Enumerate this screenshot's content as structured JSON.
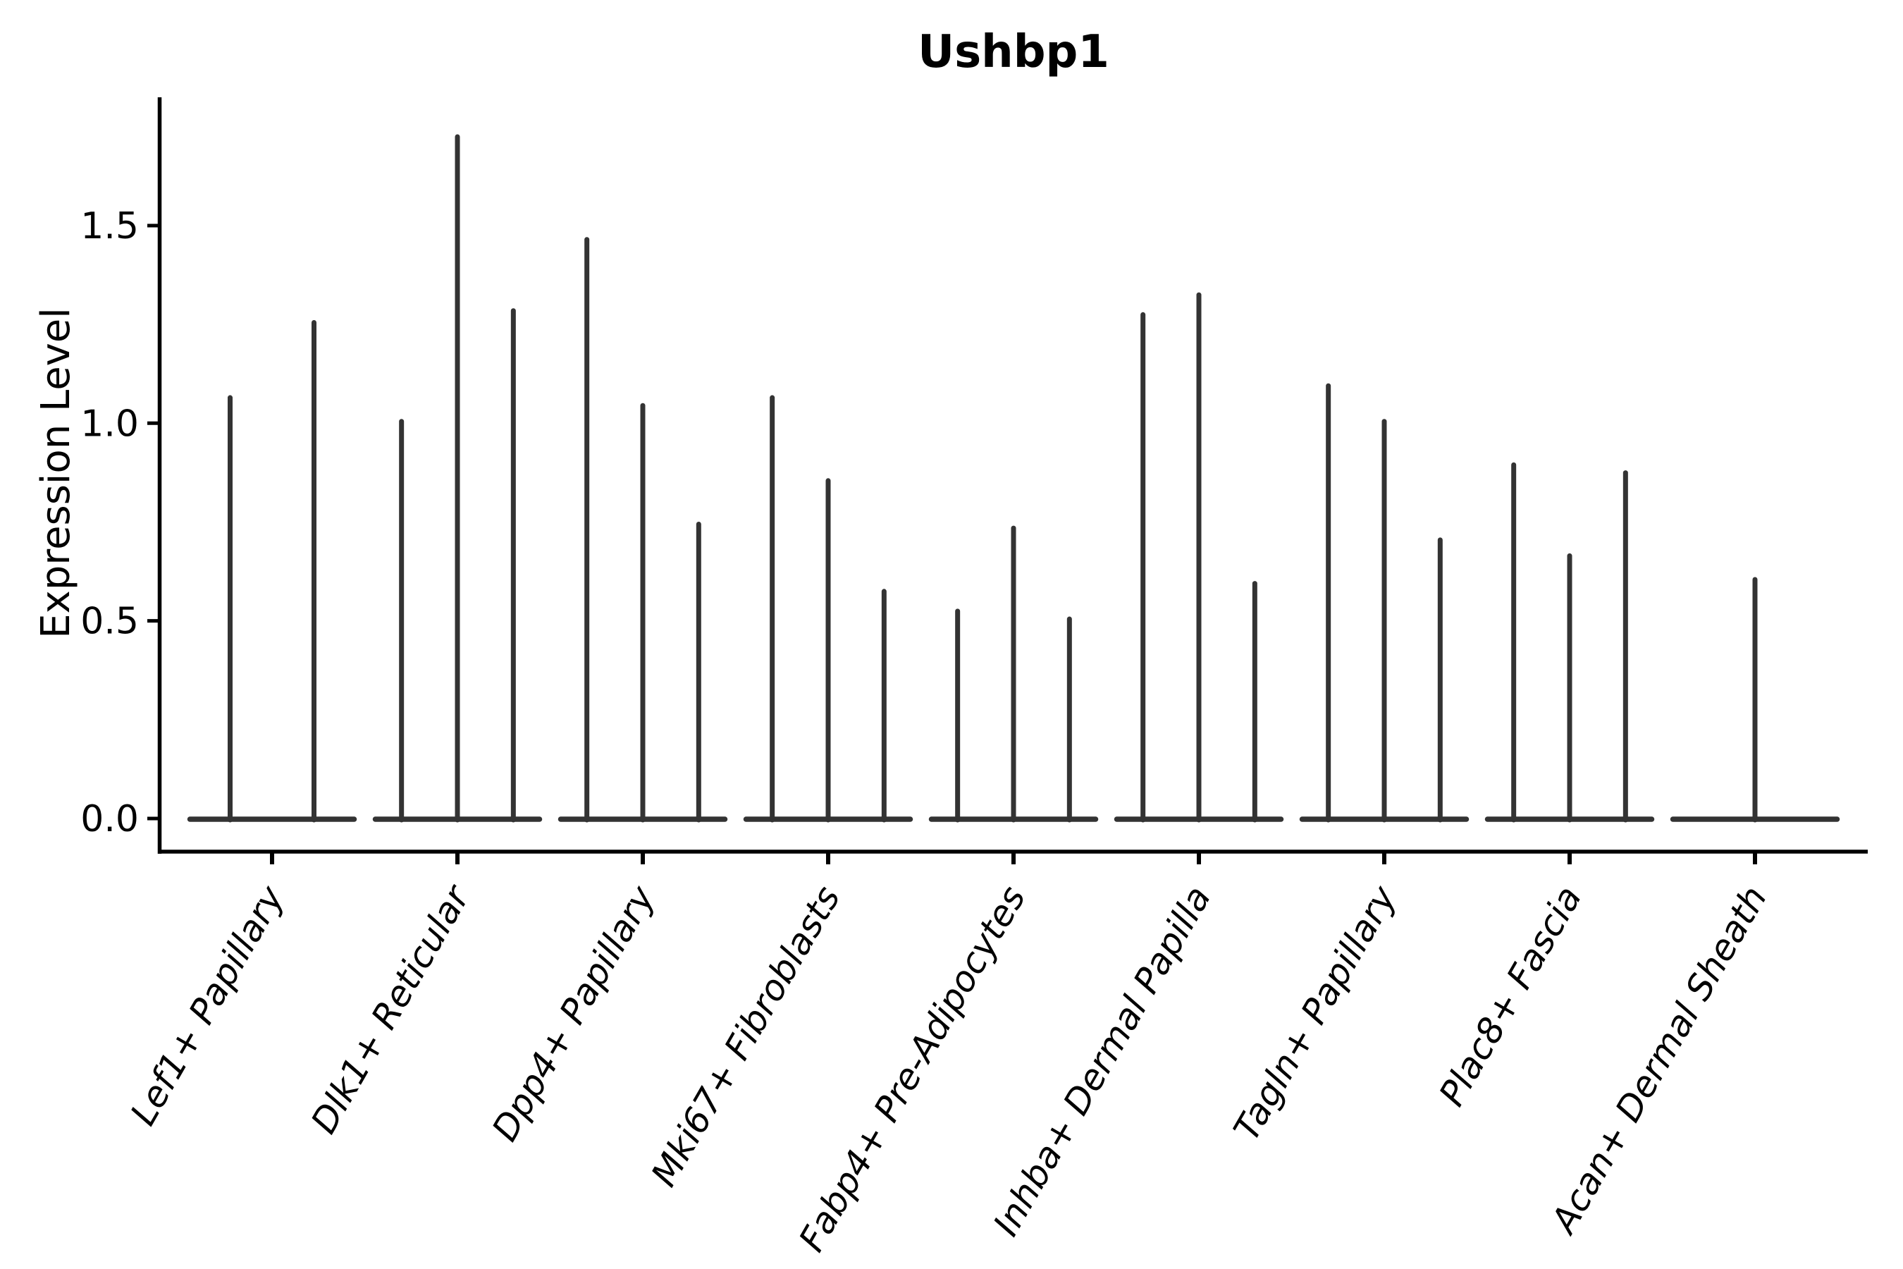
{
  "figure": {
    "background": "#ffffff"
  },
  "chart_data": {
    "type": "violin",
    "title": "Ushbp1",
    "ylabel": "Expression Level",
    "xlabel": "",
    "grid": false,
    "legend": "none",
    "ytick_labels": [
      "0.0",
      "0.5",
      "1.0",
      "1.5"
    ],
    "ytick_values": [
      0.0,
      0.5,
      1.0,
      1.5
    ],
    "ylim": [
      -0.08,
      1.83
    ],
    "violin_color": "#333333",
    "axis_color": "#000000",
    "categories": [
      "Lef1+ Papillary",
      "Dlk1+ Reticular",
      "Dpp4+ Papillary",
      "Mki67+ Fibroblasts",
      "Fabp4+ Pre-Adipocytes",
      "Inhba+ Dermal Papilla",
      "Tagln+ Papillary",
      "Plac8+ Fascia",
      "Acan+ Dermal Sheath"
    ],
    "groups": [
      {
        "label": "Lef1+ Papillary",
        "violin_max_values": [
          1.07,
          1.26
        ]
      },
      {
        "label": "Dlk1+ Reticular",
        "violin_max_values": [
          1.01,
          1.73,
          1.29
        ]
      },
      {
        "label": "Dpp4+ Papillary",
        "violin_max_values": [
          1.47,
          1.05,
          0.75
        ]
      },
      {
        "label": "Mki67+ Fibroblasts",
        "violin_max_values": [
          1.07,
          0.86,
          0.58
        ]
      },
      {
        "label": "Fabp4+ Pre-Adipocytes",
        "violin_max_values": [
          0.53,
          0.74,
          0.51
        ]
      },
      {
        "label": "Inhba+ Dermal Papilla",
        "violin_max_values": [
          1.28,
          1.33,
          0.6
        ]
      },
      {
        "label": "Tagln+ Papillary",
        "violin_max_values": [
          1.1,
          1.01,
          0.71
        ]
      },
      {
        "label": "Plac8+ Fascia",
        "violin_max_values": [
          0.9,
          0.67,
          0.88
        ]
      },
      {
        "label": "Acan+ Dermal Sheath",
        "violin_max_values": [
          0.61
        ]
      }
    ]
  }
}
